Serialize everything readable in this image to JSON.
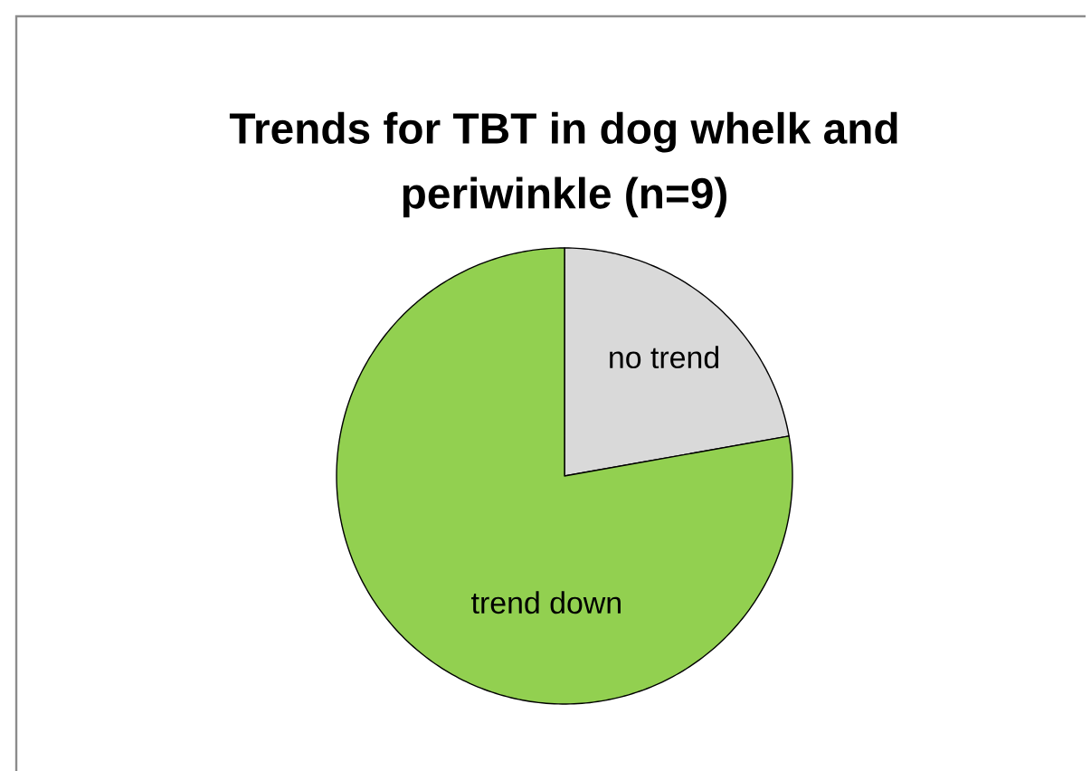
{
  "chart_data": {
    "type": "pie",
    "title": "Trends for TBT in dog whelk and periwinkle (n=9)",
    "categories": [
      "no trend",
      "trend down"
    ],
    "values": [
      22.2,
      77.8
    ],
    "colors": [
      "#d9d9d9",
      "#92d050"
    ]
  }
}
